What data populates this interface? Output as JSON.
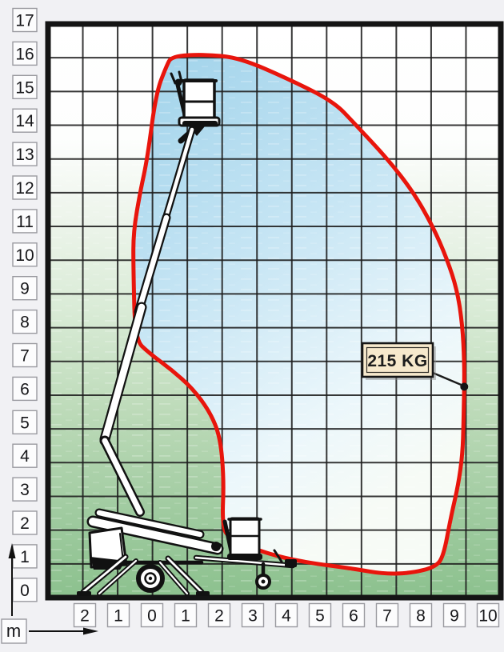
{
  "diagram": {
    "type": "work-envelope-diagram",
    "unit_label": "m",
    "load_label": "215 KG",
    "y_axis_labels": [
      "17",
      "16",
      "15",
      "14",
      "13",
      "12",
      "11",
      "10",
      "9",
      "8",
      "7",
      "6",
      "5",
      "4",
      "3",
      "2",
      "1",
      "0"
    ],
    "x_axis_labels": [
      "2",
      "1",
      "0",
      "1",
      "2",
      "3",
      "4",
      "5",
      "6",
      "7",
      "8",
      "9",
      "10"
    ],
    "x_axis_values": [
      -2,
      -1,
      0,
      1,
      2,
      3,
      4,
      5,
      6,
      7,
      8,
      9,
      10
    ],
    "axes_ranges": {
      "x_min_m": -3,
      "x_max_m": 10,
      "y_min_m": 0,
      "y_max_m": 17
    },
    "envelope_m": [
      [
        0.55,
        16.05
      ],
      [
        1.5,
        16.1
      ],
      [
        2.5,
        16.0
      ],
      [
        3.95,
        15.35
      ],
      [
        5.2,
        14.7
      ],
      [
        5.8,
        14.05
      ],
      [
        6.75,
        13.0
      ],
      [
        7.5,
        12.0
      ],
      [
        8.05,
        11.0
      ],
      [
        8.45,
        10.05
      ],
      [
        8.75,
        9.1
      ],
      [
        8.9,
        8.05
      ],
      [
        8.95,
        7.0
      ],
      [
        8.95,
        6.25
      ],
      [
        8.93,
        5.2
      ],
      [
        8.9,
        4.25
      ],
      [
        8.78,
        3.35
      ],
      [
        8.57,
        2.4
      ],
      [
        8.35,
        1.2
      ],
      [
        8.1,
        0.9
      ],
      [
        7.45,
        0.73
      ],
      [
        6.65,
        0.7
      ],
      [
        5.8,
        0.85
      ],
      [
        4.35,
        1.05
      ],
      [
        3.3,
        1.3
      ],
      [
        2.15,
        1.75
      ],
      [
        2.0,
        2.25
      ],
      [
        2.05,
        3.45
      ],
      [
        1.95,
        4.75
      ],
      [
        1.65,
        5.5
      ],
      [
        1.15,
        6.2
      ],
      [
        0.55,
        6.75
      ],
      [
        -0.1,
        7.25
      ],
      [
        -0.5,
        7.65
      ],
      [
        -0.55,
        9.75
      ],
      [
        -0.55,
        10.85
      ],
      [
        -0.35,
        12.05
      ],
      [
        -0.15,
        13.0
      ],
      [
        0.1,
        14.95
      ],
      [
        0.4,
        15.75
      ]
    ],
    "load_point_m": [
      8.95,
      6.25
    ],
    "colors": {
      "envelope_stroke": "#e8150c",
      "envelope_fill_top": "#9fd2ea",
      "ground_green_bottom": "#8cc18e",
      "grid_line": "#1d1d1d",
      "load_box_bg": "#f7e9cc",
      "label_box_bg": "#fcfcfd",
      "page_bg": "#f1f1f4"
    }
  }
}
